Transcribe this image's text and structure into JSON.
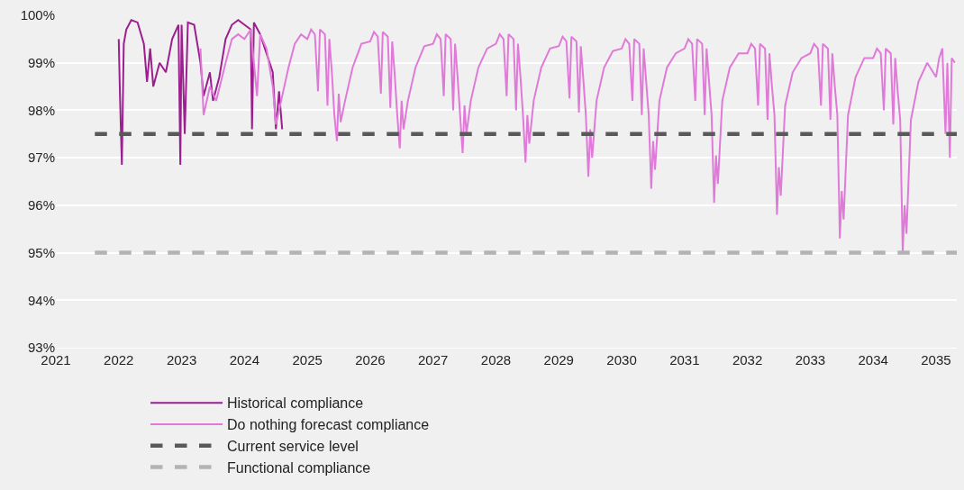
{
  "chart_data": {
    "type": "line",
    "xlim": [
      2021,
      2035.33
    ],
    "xticks": [
      2021,
      2022,
      2023,
      2024,
      2025,
      2026,
      2027,
      2028,
      2029,
      2030,
      2031,
      2032,
      2033,
      2034,
      2035
    ],
    "ylim": [
      93,
      100
    ],
    "yticks": [
      {
        "value": 93,
        "label": "93%"
      },
      {
        "value": 94,
        "label": "94%"
      },
      {
        "value": 95,
        "label": "95%"
      },
      {
        "value": 96,
        "label": "96%"
      },
      {
        "value": 97,
        "label": "97%"
      },
      {
        "value": 98,
        "label": "98%"
      },
      {
        "value": 99,
        "label": "99%"
      },
      {
        "value": 100,
        "label": "100%"
      }
    ],
    "grid": "y",
    "legend": "bottom",
    "marker": "none",
    "series": [
      {
        "name": "Historical compliance",
        "color": "#9b1f8f",
        "line_style": "solid",
        "x": [
          2022.0,
          2022.02,
          2022.05,
          2022.08,
          2022.12,
          2022.2,
          2022.3,
          2022.4,
          2022.45,
          2022.5,
          2022.55,
          2022.65,
          2022.75,
          2022.85,
          2022.95,
          2022.98,
          2023.0,
          2023.05,
          2023.1,
          2023.2,
          2023.3,
          2023.35,
          2023.45,
          2023.5,
          2023.6,
          2023.7,
          2023.8,
          2023.9,
          2024.0,
          2024.1,
          2024.12,
          2024.15,
          2024.25,
          2024.35,
          2024.45,
          2024.5,
          2024.55,
          2024.6
        ],
        "values": [
          99.5,
          98.3,
          96.85,
          99.4,
          99.7,
          99.9,
          99.85,
          99.4,
          98.6,
          99.3,
          98.5,
          99.0,
          98.8,
          99.5,
          99.8,
          96.85,
          99.8,
          97.5,
          99.85,
          99.8,
          99.0,
          98.3,
          98.8,
          98.2,
          98.7,
          99.5,
          99.8,
          99.9,
          99.8,
          99.7,
          97.6,
          99.85,
          99.6,
          99.2,
          98.8,
          97.6,
          98.4,
          97.6
        ]
      },
      {
        "name": "Do nothing forecast compliance",
        "color": "#e07ad8",
        "line_style": "solid",
        "x": [
          2023.3,
          2023.35,
          2023.45,
          2023.55,
          2023.7,
          2023.8,
          2023.9,
          2024.0,
          2024.1,
          2024.2,
          2024.25,
          2024.35,
          2024.45,
          2024.5,
          2024.6,
          2024.7,
          2024.8,
          2024.9,
          2025.0,
          2025.06,
          2025.12,
          2025.17,
          2025.2,
          2025.28,
          2025.32,
          2025.35,
          2025.39,
          2025.43,
          2025.47,
          2025.5,
          2025.53,
          2025.6,
          2025.72,
          2025.86,
          2026.0,
          2026.06,
          2026.12,
          2026.17,
          2026.2,
          2026.28,
          2026.32,
          2026.35,
          2026.39,
          2026.43,
          2026.47,
          2026.5,
          2026.53,
          2026.6,
          2026.72,
          2026.86,
          2027.0,
          2027.06,
          2027.12,
          2027.17,
          2027.2,
          2027.28,
          2027.32,
          2027.35,
          2027.39,
          2027.43,
          2027.47,
          2027.5,
          2027.53,
          2027.6,
          2027.72,
          2027.86,
          2028.0,
          2028.06,
          2028.12,
          2028.17,
          2028.2,
          2028.28,
          2028.32,
          2028.35,
          2028.39,
          2028.43,
          2028.47,
          2028.5,
          2028.53,
          2028.6,
          2028.72,
          2028.86,
          2029.0,
          2029.06,
          2029.12,
          2029.17,
          2029.2,
          2029.28,
          2029.32,
          2029.35,
          2029.39,
          2029.43,
          2029.47,
          2029.5,
          2029.53,
          2029.6,
          2029.72,
          2029.86,
          2030.0,
          2030.06,
          2030.12,
          2030.17,
          2030.2,
          2030.28,
          2030.32,
          2030.35,
          2030.39,
          2030.43,
          2030.47,
          2030.5,
          2030.53,
          2030.6,
          2030.72,
          2030.86,
          2031.0,
          2031.06,
          2031.12,
          2031.17,
          2031.2,
          2031.28,
          2031.32,
          2031.35,
          2031.39,
          2031.43,
          2031.47,
          2031.5,
          2031.53,
          2031.6,
          2031.72,
          2031.86,
          2032.0,
          2032.06,
          2032.12,
          2032.17,
          2032.2,
          2032.28,
          2032.32,
          2032.35,
          2032.39,
          2032.43,
          2032.47,
          2032.5,
          2032.53,
          2032.6,
          2032.72,
          2032.86,
          2033.0,
          2033.06,
          2033.12,
          2033.17,
          2033.2,
          2033.28,
          2033.32,
          2033.35,
          2033.39,
          2033.43,
          2033.47,
          2033.5,
          2033.53,
          2033.6,
          2033.72,
          2033.86,
          2034.0,
          2034.06,
          2034.12,
          2034.17,
          2034.2,
          2034.28,
          2034.32,
          2034.35,
          2034.39,
          2034.43,
          2034.47,
          2034.5,
          2034.53,
          2034.6,
          2034.72,
          2034.86,
          2035.0,
          2035.05,
          2035.1,
          2035.15,
          2035.18,
          2035.22,
          2035.25,
          2035.3
        ],
        "values": [
          99.3,
          97.9,
          98.5,
          98.2,
          99.0,
          99.5,
          99.6,
          99.5,
          99.7,
          98.3,
          99.6,
          99.3,
          98.5,
          97.7,
          98.3,
          98.9,
          99.4,
          99.6,
          99.5,
          99.7,
          99.6,
          98.4,
          99.7,
          99.6,
          98.1,
          99.5,
          98.8,
          97.9,
          97.35,
          98.35,
          97.75,
          98.2,
          98.9,
          99.4,
          99.45,
          99.65,
          99.55,
          98.35,
          99.65,
          99.55,
          98.05,
          99.45,
          98.75,
          97.9,
          97.2,
          98.2,
          97.6,
          98.2,
          98.9,
          99.35,
          99.4,
          99.6,
          99.5,
          98.3,
          99.6,
          99.5,
          98.0,
          99.4,
          98.7,
          97.9,
          97.1,
          98.1,
          97.5,
          98.2,
          98.9,
          99.3,
          99.4,
          99.6,
          99.5,
          98.3,
          99.6,
          99.5,
          98.0,
          99.4,
          98.7,
          97.9,
          96.9,
          97.9,
          97.3,
          98.2,
          98.9,
          99.3,
          99.35,
          99.55,
          99.45,
          98.25,
          99.55,
          99.45,
          97.95,
          99.35,
          98.65,
          97.9,
          96.6,
          97.6,
          97.0,
          98.2,
          98.9,
          99.25,
          99.3,
          99.5,
          99.4,
          98.2,
          99.5,
          99.4,
          97.9,
          99.3,
          98.6,
          97.9,
          96.35,
          97.35,
          96.75,
          98.2,
          98.9,
          99.2,
          99.3,
          99.5,
          99.4,
          98.2,
          99.5,
          99.4,
          97.9,
          99.3,
          98.6,
          97.9,
          96.05,
          97.05,
          96.45,
          98.2,
          98.9,
          99.2,
          99.2,
          99.4,
          99.3,
          98.1,
          99.4,
          99.3,
          97.8,
          99.2,
          98.5,
          97.9,
          95.8,
          96.8,
          96.2,
          98.1,
          98.8,
          99.1,
          99.2,
          99.4,
          99.3,
          98.1,
          99.4,
          99.3,
          97.8,
          99.2,
          98.5,
          97.9,
          95.3,
          96.3,
          95.7,
          97.9,
          98.7,
          99.1,
          99.1,
          99.3,
          99.2,
          98.0,
          99.3,
          99.2,
          97.7,
          99.1,
          98.4,
          97.8,
          95.0,
          96.0,
          95.4,
          97.8,
          98.6,
          99.0,
          98.7,
          99.1,
          99.3,
          97.5,
          99.0,
          97.0,
          99.1,
          99.0
        ]
      },
      {
        "name": "Current service level",
        "color": "#595959",
        "line_style": "dashed",
        "x": [
          2021.62,
          2035.33
        ],
        "values": [
          97.5,
          97.5
        ]
      },
      {
        "name": "Functional compliance",
        "color": "#b3b3b3",
        "line_style": "dashed",
        "x": [
          2021.62,
          2035.33
        ],
        "values": [
          95,
          95
        ]
      }
    ]
  }
}
